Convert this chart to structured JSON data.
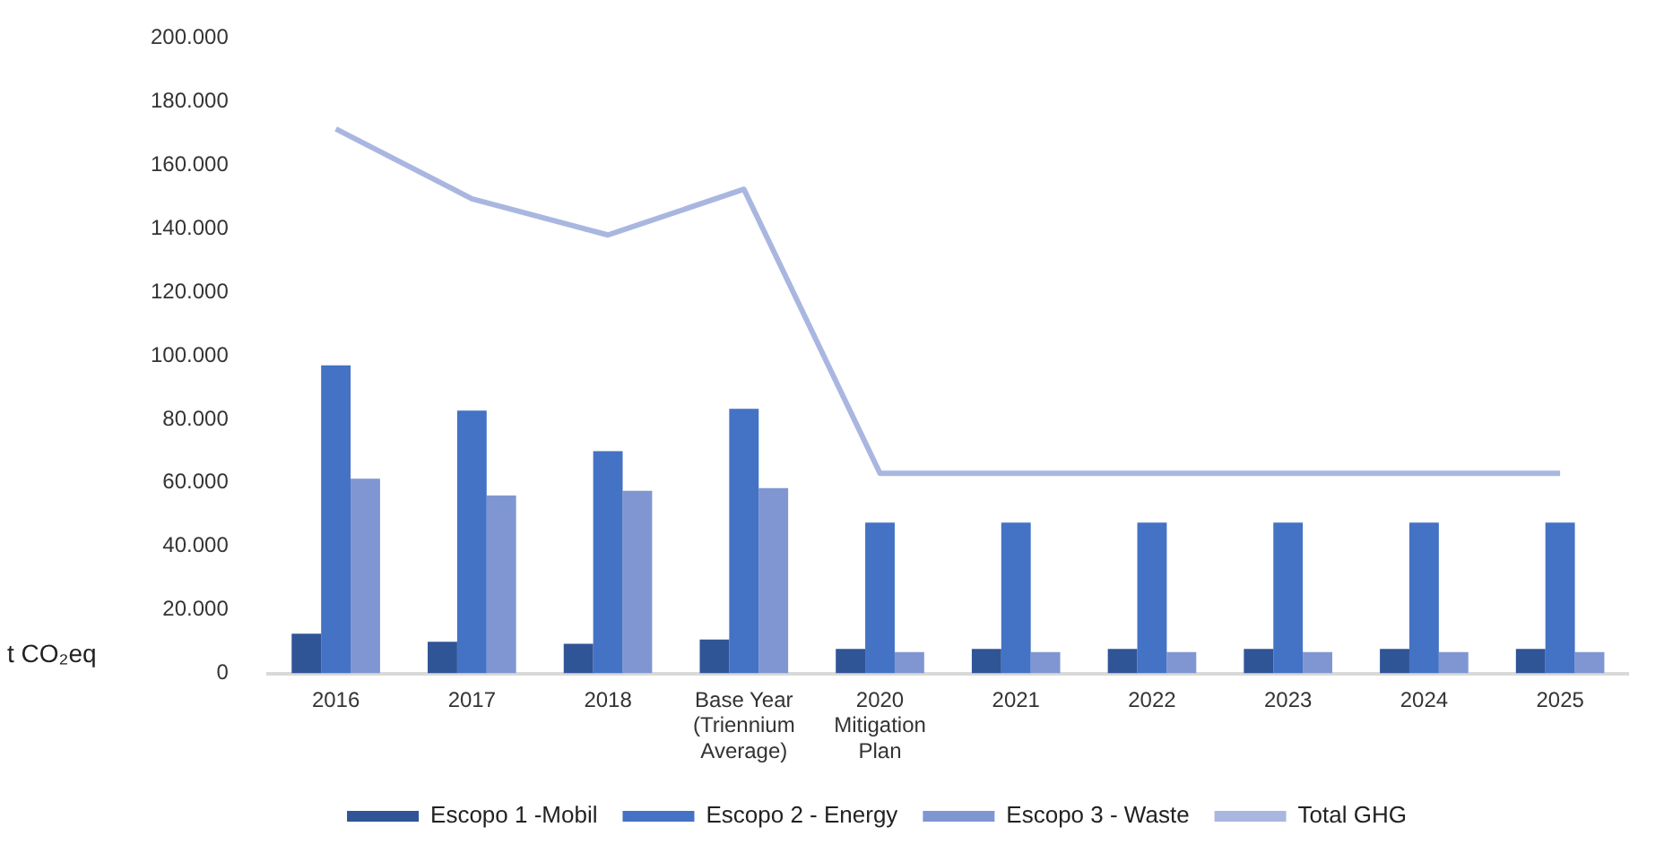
{
  "chart_data": {
    "type": "bar",
    "ylabel": "t CO₂eq",
    "categories": [
      "2016",
      "2017",
      "2018",
      "Base Year (Triennium Average)",
      "2020 Mitigation Plan",
      "2021",
      "2022",
      "2023",
      "2024",
      "2025"
    ],
    "series": [
      {
        "name": "Escopo 1 -Mobil",
        "color": "#2f5597",
        "values": [
          12500,
          10000,
          9300,
          10700,
          7700,
          7700,
          7700,
          7700,
          7700,
          7700
        ]
      },
      {
        "name": "Escopo 2 - Energy",
        "color": "#4472c4",
        "values": [
          97000,
          82700,
          70000,
          83300,
          47500,
          47500,
          47500,
          47500,
          47500,
          47500
        ]
      },
      {
        "name": "Escopo 3 - Waste",
        "color": "#7f96d2",
        "values": [
          61300,
          56000,
          57500,
          58300,
          6700,
          6700,
          6700,
          6700,
          6700,
          6700
        ]
      },
      {
        "name": "Total GHG",
        "type": "line",
        "color": "#a9b7e0",
        "values": [
          171400,
          149400,
          138000,
          152400,
          63000,
          63000,
          63000,
          63000,
          63000,
          63000
        ]
      }
    ],
    "ylim": [
      0,
      200000
    ],
    "yticks": [
      0,
      {
        "value": 20000,
        "label": "20.000"
      },
      {
        "value": 40000,
        "label": "40.000"
      },
      {
        "value": 60000,
        "label": "60.000"
      },
      {
        "value": 80000,
        "label": "80.000"
      },
      {
        "value": 100000,
        "label": "100.000"
      },
      {
        "value": 120000,
        "label": "120.000"
      },
      {
        "value": 140000,
        "label": "140.000"
      },
      {
        "value": 160000,
        "label": "160.000"
      },
      {
        "value": 180000,
        "label": "180.000"
      },
      {
        "value": 200000,
        "label": "200.000"
      }
    ],
    "grid": false,
    "legend": "bottom",
    "marker": "none",
    "line_style": "solid"
  }
}
